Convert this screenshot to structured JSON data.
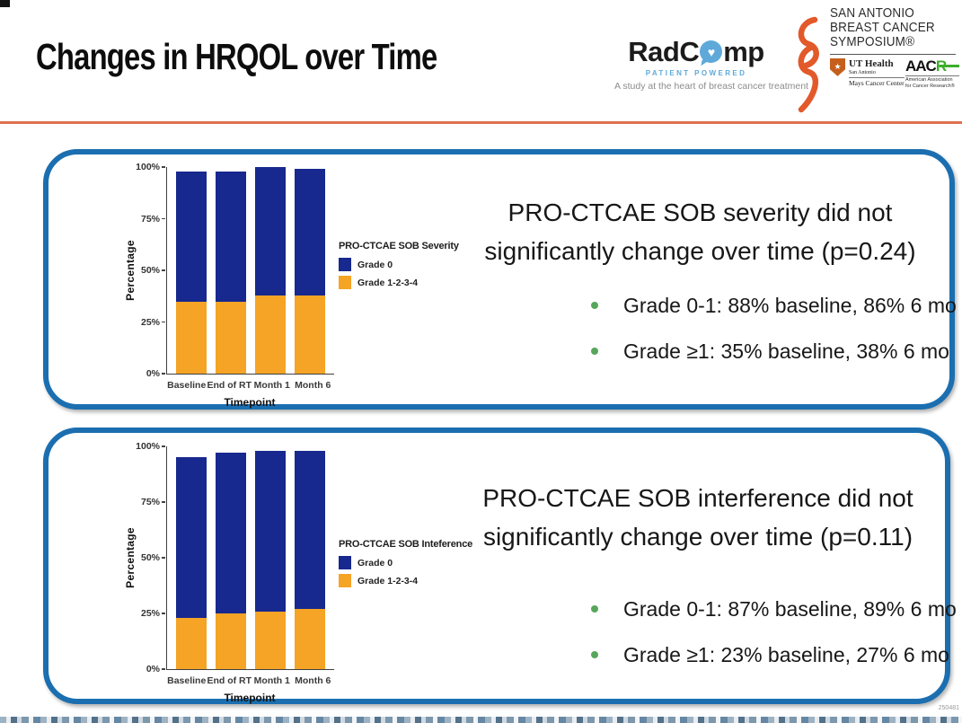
{
  "slide": {
    "title": "Changes in HRQOL over Time",
    "slide_id": "250481"
  },
  "logos": {
    "radcomp": {
      "name_prefix": "RadC",
      "name_suffix": "mp",
      "heart_glyph": "♥",
      "subtitle": "PATIENT POWERED",
      "tagline": "A study at the heart of breast cancer treatment"
    },
    "sabcs": {
      "line1": "SAN ANTONIO",
      "line2": "BREAST CANCER",
      "line3": "SYMPOSIUM®"
    },
    "uthealth": {
      "star_glyph": "★",
      "line1": "UT Health",
      "line2": "San Antonio",
      "line3": "Mays Cancer Center"
    },
    "aacr": {
      "prefix": "AAC",
      "suffix_green": "R",
      "line1": "American Association",
      "line2": "for Cancer Research®"
    }
  },
  "panels": [
    {
      "headline_line1": "PRO-CTCAE SOB severity did not",
      "headline_line2": "significantly change over time (p=0.24)",
      "bullets": [
        "Grade 0-1: 88% baseline, 86% 6 mo",
        "Grade ≥1: 35% baseline, 38% 6 mo"
      ]
    },
    {
      "headline_line1": "PRO-CTCAE SOB interference did not",
      "headline_line2": "significantly change over time (p=0.11)",
      "bullets": [
        "Grade 0-1: 87% baseline, 89% 6 mo",
        "Grade ≥1: 23% baseline, 27% 6 mo"
      ]
    }
  ],
  "chart_data": [
    {
      "type": "bar",
      "stacked": true,
      "title": "",
      "legend_title": "PRO-CTCAE SOB Severity",
      "legend_entries": [
        "Grade 0",
        "Grade 1-2-3-4"
      ],
      "legend_position": "right",
      "grid": false,
      "categories": [
        "Baseline",
        "End of RT",
        "Month 1",
        "Month 6"
      ],
      "series": [
        {
          "name": "Grade 1-2-3-4",
          "color": "#f5a426",
          "values": [
            35,
            35,
            38,
            38
          ]
        },
        {
          "name": "Grade 0",
          "color": "#17288e",
          "values": [
            63,
            63,
            62,
            61
          ]
        }
      ],
      "bar_totals": [
        98,
        98,
        100,
        99
      ],
      "xlabel": "Timepoint",
      "ylabel": "Percentage",
      "yticks": [
        "100%",
        "75%",
        "50%",
        "25%",
        "0%"
      ],
      "ylim": [
        0,
        100
      ]
    },
    {
      "type": "bar",
      "stacked": true,
      "title": "",
      "legend_title": "PRO-CTCAE SOB Inteference",
      "legend_entries": [
        "Grade 0",
        "Grade 1-2-3-4"
      ],
      "legend_position": "right",
      "grid": false,
      "categories": [
        "Baseline",
        "End of RT",
        "Month 1",
        "Month 6"
      ],
      "series": [
        {
          "name": "Grade 1-2-3-4",
          "color": "#f5a426",
          "values": [
            23,
            25,
            26,
            27
          ]
        },
        {
          "name": "Grade 0",
          "color": "#17288e",
          "values": [
            72,
            72,
            72,
            71
          ]
        }
      ],
      "bar_totals": [
        95,
        97,
        98,
        98
      ],
      "xlabel": "Timepoint",
      "ylabel": "Percentage",
      "yticks": [
        "100%",
        "75%",
        "50%",
        "25%",
        "0%"
      ],
      "ylim": [
        0,
        100
      ]
    }
  ],
  "colors": {
    "panel_border": "#1b6fb0",
    "divider": "#de7150",
    "grade0_navy": "#17288e",
    "grade1234_orange": "#f5a426",
    "bullet_green": "#58a65c",
    "ribbon_orange": "#e2592a",
    "radcomp_blue": "#5ea9d9",
    "aacr_green": "#3dae2b",
    "uth_shield_orange": "#c55f1d"
  }
}
